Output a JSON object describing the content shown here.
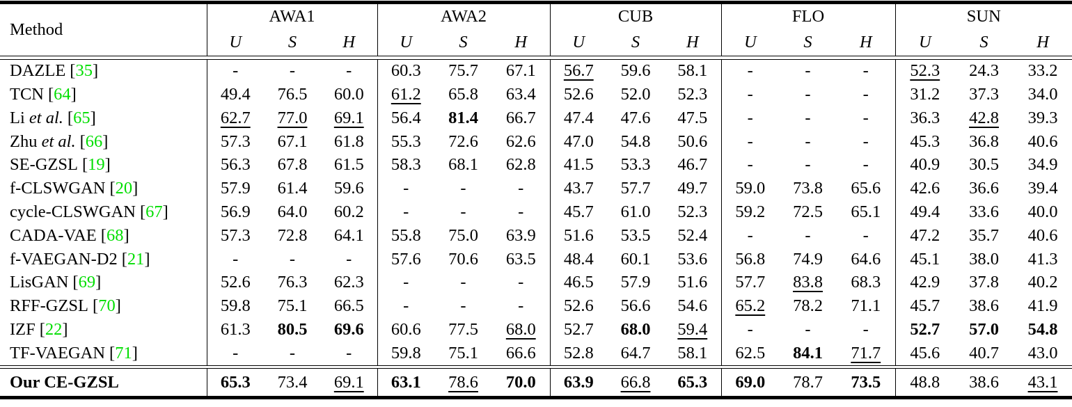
{
  "colors": {
    "citation_green": "#00de00",
    "text": "#000000"
  },
  "table": {
    "method_header": "Method",
    "etal_label": "et al.",
    "datasets": [
      "AWA1",
      "AWA2",
      "CUB",
      "FLO",
      "SUN"
    ],
    "metrics": [
      "U",
      "S",
      "H"
    ],
    "rows": [
      {
        "method": {
          "name": "DAZLE",
          "etal": false,
          "cite": "35"
        },
        "values": [
          "-",
          "-",
          "-",
          "60.3",
          "75.7",
          "67.1",
          "56.7",
          "59.6",
          "58.1",
          "-",
          "-",
          "-",
          "52.3",
          "24.3",
          "33.2"
        ],
        "emph": [
          "",
          "",
          "",
          "",
          "",
          "",
          "u",
          "",
          "",
          "",
          "",
          "",
          "u",
          "",
          ""
        ]
      },
      {
        "method": {
          "name": "TCN",
          "etal": false,
          "cite": "64"
        },
        "values": [
          "49.4",
          "76.5",
          "60.0",
          "61.2",
          "65.8",
          "63.4",
          "52.6",
          "52.0",
          "52.3",
          "-",
          "-",
          "-",
          "31.2",
          "37.3",
          "34.0"
        ],
        "emph": [
          "",
          "",
          "",
          "u",
          "",
          "",
          "",
          "",
          "",
          "",
          "",
          "",
          "",
          "",
          ""
        ]
      },
      {
        "method": {
          "name": "Li",
          "etal": true,
          "cite": "65"
        },
        "values": [
          "62.7",
          "77.0",
          "69.1",
          "56.4",
          "81.4",
          "66.7",
          "47.4",
          "47.6",
          "47.5",
          "-",
          "-",
          "-",
          "36.3",
          "42.8",
          "39.3"
        ],
        "emph": [
          "u",
          "u",
          "u",
          "",
          "b",
          "",
          "",
          "",
          "",
          "",
          "",
          "",
          "",
          "u",
          ""
        ]
      },
      {
        "method": {
          "name": "Zhu",
          "etal": true,
          "cite": "66"
        },
        "values": [
          "57.3",
          "67.1",
          "61.8",
          "55.3",
          "72.6",
          "62.6",
          "47.0",
          "54.8",
          "50.6",
          "-",
          "-",
          "-",
          "45.3",
          "36.8",
          "40.6"
        ],
        "emph": [
          "",
          "",
          "",
          "",
          "",
          "",
          "",
          "",
          "",
          "",
          "",
          "",
          "",
          "",
          ""
        ]
      },
      {
        "method": {
          "name": "SE-GZSL",
          "etal": false,
          "cite": "19"
        },
        "values": [
          "56.3",
          "67.8",
          "61.5",
          "58.3",
          "68.1",
          "62.8",
          "41.5",
          "53.3",
          "46.7",
          "-",
          "-",
          "-",
          "40.9",
          "30.5",
          "34.9"
        ],
        "emph": [
          "",
          "",
          "",
          "",
          "",
          "",
          "",
          "",
          "",
          "",
          "",
          "",
          "",
          "",
          ""
        ]
      },
      {
        "method": {
          "name": "f-CLSWGAN",
          "etal": false,
          "cite": "20"
        },
        "values": [
          "57.9",
          "61.4",
          "59.6",
          "-",
          "-",
          "-",
          "43.7",
          "57.7",
          "49.7",
          "59.0",
          "73.8",
          "65.6",
          "42.6",
          "36.6",
          "39.4"
        ],
        "emph": [
          "",
          "",
          "",
          "",
          "",
          "",
          "",
          "",
          "",
          "",
          "",
          "",
          "",
          "",
          ""
        ]
      },
      {
        "method": {
          "name": "cycle-CLSWGAN",
          "etal": false,
          "cite": "67"
        },
        "values": [
          "56.9",
          "64.0",
          "60.2",
          "-",
          "-",
          "-",
          "45.7",
          "61.0",
          "52.3",
          "59.2",
          "72.5",
          "65.1",
          "49.4",
          "33.6",
          "40.0"
        ],
        "emph": [
          "",
          "",
          "",
          "",
          "",
          "",
          "",
          "",
          "",
          "",
          "",
          "",
          "",
          "",
          ""
        ]
      },
      {
        "method": {
          "name": "CADA-VAE",
          "etal": false,
          "cite": "68"
        },
        "values": [
          "57.3",
          "72.8",
          "64.1",
          "55.8",
          "75.0",
          "63.9",
          "51.6",
          "53.5",
          "52.4",
          "-",
          "-",
          "-",
          "47.2",
          "35.7",
          "40.6"
        ],
        "emph": [
          "",
          "",
          "",
          "",
          "",
          "",
          "",
          "",
          "",
          "",
          "",
          "",
          "",
          "",
          ""
        ]
      },
      {
        "method": {
          "name": "f-VAEGAN-D2",
          "etal": false,
          "cite": "21"
        },
        "values": [
          "-",
          "-",
          "-",
          "57.6",
          "70.6",
          "63.5",
          "48.4",
          "60.1",
          "53.6",
          "56.8",
          "74.9",
          "64.6",
          "45.1",
          "38.0",
          "41.3"
        ],
        "emph": [
          "",
          "",
          "",
          "",
          "",
          "",
          "",
          "",
          "",
          "",
          "",
          "",
          "",
          "",
          ""
        ]
      },
      {
        "method": {
          "name": "LisGAN",
          "etal": false,
          "cite": "69"
        },
        "values": [
          "52.6",
          "76.3",
          "62.3",
          "-",
          "-",
          "-",
          "46.5",
          "57.9",
          "51.6",
          "57.7",
          "83.8",
          "68.3",
          "42.9",
          "37.8",
          "40.2"
        ],
        "emph": [
          "",
          "",
          "",
          "",
          "",
          "",
          "",
          "",
          "",
          "",
          "u",
          "",
          "",
          "",
          ""
        ]
      },
      {
        "method": {
          "name": "RFF-GZSL",
          "etal": false,
          "cite": "70"
        },
        "values": [
          "59.8",
          "75.1",
          "66.5",
          "-",
          "-",
          "-",
          "52.6",
          "56.6",
          "54.6",
          "65.2",
          "78.2",
          "71.1",
          "45.7",
          "38.6",
          "41.9"
        ],
        "emph": [
          "",
          "",
          "",
          "",
          "",
          "",
          "",
          "",
          "",
          "u",
          "",
          "",
          "",
          "",
          ""
        ]
      },
      {
        "method": {
          "name": "IZF",
          "etal": false,
          "cite": "22"
        },
        "values": [
          "61.3",
          "80.5",
          "69.6",
          "60.6",
          "77.5",
          "68.0",
          "52.7",
          "68.0",
          "59.4",
          "-",
          "-",
          "-",
          "52.7",
          "57.0",
          "54.8"
        ],
        "emph": [
          "",
          "b",
          "b",
          "",
          "",
          "u",
          "",
          "b",
          "u",
          "",
          "",
          "",
          "b",
          "b",
          "b"
        ]
      },
      {
        "method": {
          "name": "TF-VAEGAN",
          "etal": false,
          "cite": "71"
        },
        "values": [
          "-",
          "-",
          "-",
          "59.8",
          "75.1",
          "66.6",
          "52.8",
          "64.7",
          "58.1",
          "62.5",
          "84.1",
          "71.7",
          "45.6",
          "40.7",
          "43.0"
        ],
        "emph": [
          "",
          "",
          "",
          "",
          "",
          "",
          "",
          "",
          "",
          "",
          "b",
          "u",
          "",
          "",
          ""
        ]
      }
    ],
    "final_row": {
      "method": {
        "name": "Our CE-GZSL",
        "etal": false,
        "cite": null
      },
      "values": [
        "65.3",
        "73.4",
        "69.1",
        "63.1",
        "78.6",
        "70.0",
        "63.9",
        "66.8",
        "65.3",
        "69.0",
        "78.7",
        "73.5",
        "48.8",
        "38.6",
        "43.1"
      ],
      "emph": [
        "b",
        "",
        "u",
        "b",
        "u",
        "b",
        "b",
        "u",
        "b",
        "b",
        "",
        "b",
        "",
        "",
        "u"
      ]
    }
  }
}
